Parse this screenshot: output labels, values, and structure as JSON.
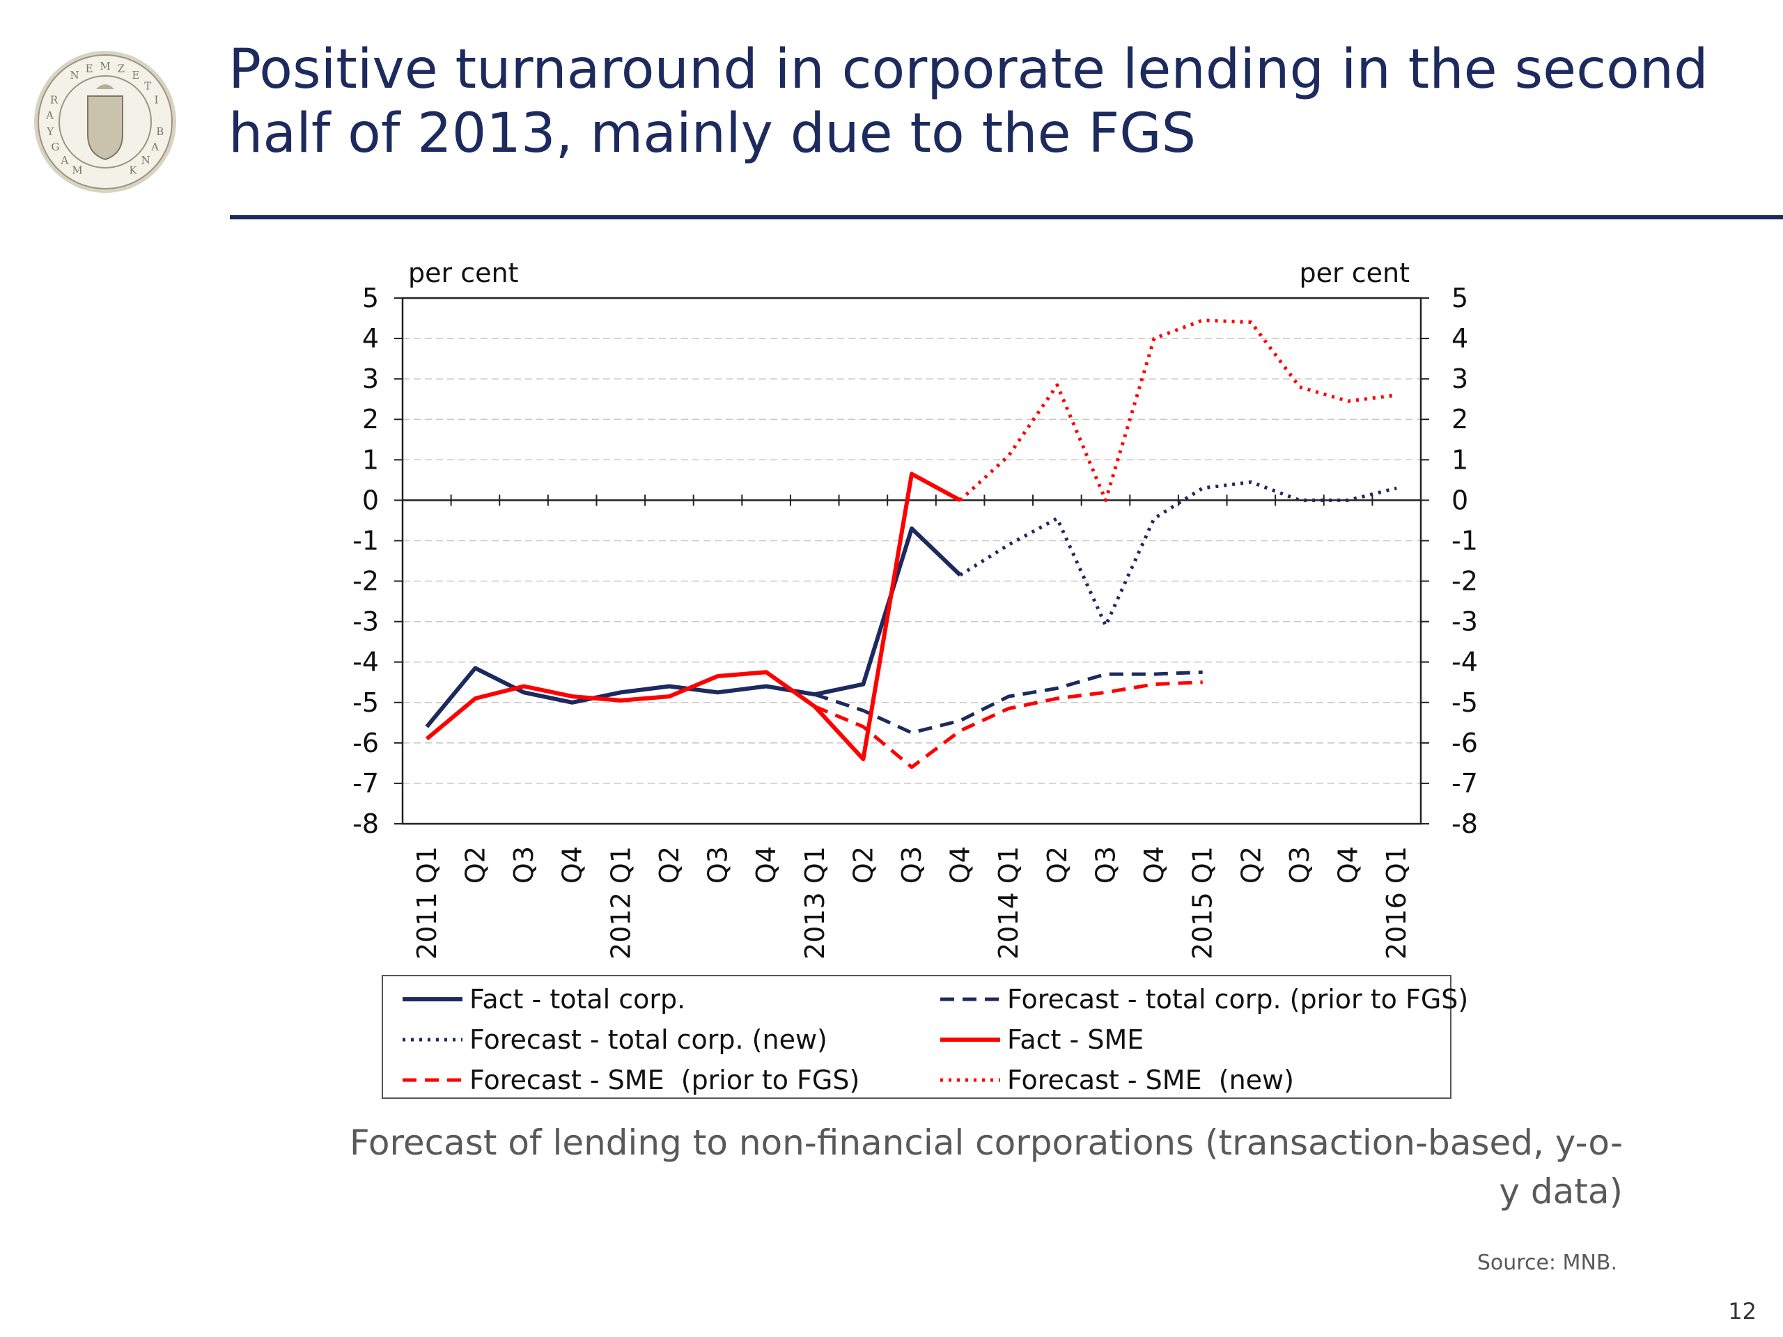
{
  "slide": {
    "title": "Positive turnaround in corporate lending in the second half of 2013, mainly due to the FGS",
    "caption": "Forecast of lending to non-financial corporations (transaction-based, y-o-y data)",
    "source": "Source: MNB.",
    "page_number": "12",
    "logo_text": "MAGYAR NEMZETI BANK",
    "colors": {
      "title": "#1c2a5e",
      "navy": "#1c2a5e",
      "red": "#ff0000",
      "caption": "#595959"
    }
  },
  "chart_data": {
    "type": "line",
    "ylabel_left": "per cent",
    "ylabel_right": "per cent",
    "ylim": [
      -8,
      5
    ],
    "yticks": [
      5,
      4,
      3,
      2,
      1,
      0,
      -1,
      -2,
      -3,
      -4,
      -5,
      -6,
      -7,
      -8
    ],
    "categories": [
      "2011 Q1",
      "Q2",
      "Q3",
      "Q4",
      "2012 Q1",
      "Q2",
      "Q3",
      "Q4",
      "2013 Q1",
      "Q2",
      "Q3",
      "Q4",
      "2014 Q1",
      "Q2",
      "Q3",
      "Q4",
      "2015 Q1",
      "Q2",
      "Q3",
      "Q4",
      "2016 Q1"
    ],
    "grid": "horizontal dashed",
    "legend_position": "bottom",
    "series": [
      {
        "name": "Fact - total corp.",
        "color": "#1c2a5e",
        "style": "solid",
        "values": [
          -5.6,
          -4.15,
          -4.75,
          -5.0,
          -4.75,
          -4.6,
          -4.75,
          -4.6,
          -4.8,
          -4.55,
          -0.7,
          -1.85,
          null,
          null,
          null,
          null,
          null,
          null,
          null,
          null,
          null
        ]
      },
      {
        "name": "Forecast - total corp. (prior to FGS)",
        "color": "#1c2a5e",
        "style": "dashed",
        "values": [
          null,
          null,
          null,
          null,
          null,
          null,
          null,
          null,
          -4.8,
          -5.2,
          -5.75,
          -5.45,
          -4.85,
          -4.65,
          -4.3,
          -4.3,
          -4.25,
          null,
          null,
          null,
          null
        ]
      },
      {
        "name": "Forecast - total corp. (new)",
        "color": "#1c2a5e",
        "style": "dotted",
        "values": [
          null,
          null,
          null,
          null,
          null,
          null,
          null,
          null,
          null,
          null,
          null,
          -1.85,
          -1.1,
          -0.45,
          -3.1,
          -0.45,
          0.3,
          0.45,
          0.0,
          0.0,
          0.3
        ]
      },
      {
        "name": "Fact - SME",
        "color": "#ff0000",
        "style": "solid",
        "values": [
          -5.9,
          -4.9,
          -4.6,
          -4.85,
          -4.95,
          -4.85,
          -4.35,
          -4.25,
          -5.1,
          -6.4,
          0.65,
          0.0,
          null,
          null,
          null,
          null,
          null,
          null,
          null,
          null,
          null
        ]
      },
      {
        "name": "Forecast - SME  (prior to FGS)",
        "color": "#ff0000",
        "style": "dashed",
        "values": [
          null,
          null,
          null,
          null,
          null,
          null,
          null,
          null,
          -5.1,
          -5.6,
          -6.6,
          -5.7,
          -5.15,
          -4.9,
          -4.75,
          -4.55,
          -4.5,
          null,
          null,
          null,
          null
        ]
      },
      {
        "name": "Forecast - SME  (new)",
        "color": "#ff0000",
        "style": "dotted",
        "values": [
          null,
          null,
          null,
          null,
          null,
          null,
          null,
          null,
          null,
          null,
          null,
          0.0,
          1.1,
          2.85,
          0.0,
          4.0,
          4.45,
          4.4,
          2.8,
          2.45,
          2.6
        ]
      }
    ]
  }
}
